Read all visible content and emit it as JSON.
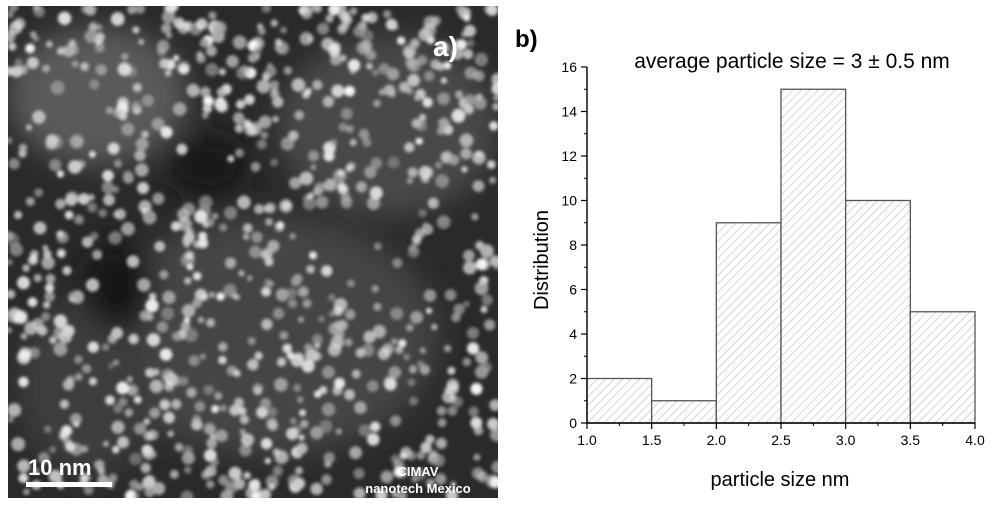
{
  "panel_a": {
    "label": "a)",
    "scale_bar_label": "10 nm",
    "watermark_line1": "CIMAV",
    "watermark_line2": "nanotech Mexico"
  },
  "panel_b": {
    "label": "b)"
  },
  "chart_data": {
    "type": "bar",
    "title": "average particle size = 3 ± 0.5 nm",
    "xlabel": "particle size nm",
    "ylabel": "Distribution",
    "xlim": [
      1.0,
      4.0
    ],
    "ylim": [
      0,
      16
    ],
    "xticks": [
      "1.0",
      "1.5",
      "2.0",
      "2.5",
      "3.0",
      "3.5",
      "4.0"
    ],
    "yticks": [
      "0",
      "2",
      "4",
      "6",
      "8",
      "10",
      "12",
      "14",
      "16"
    ],
    "bins": [
      {
        "start": 1.0,
        "end": 1.5,
        "value": 2
      },
      {
        "start": 1.5,
        "end": 2.0,
        "value": 1
      },
      {
        "start": 2.0,
        "end": 2.5,
        "value": 9
      },
      {
        "start": 2.5,
        "end": 3.0,
        "value": 15
      },
      {
        "start": 3.0,
        "end": 3.5,
        "value": 10
      },
      {
        "start": 3.5,
        "end": 4.0,
        "value": 5
      }
    ],
    "bar_fill": "hatched",
    "grid": false,
    "legend": "none"
  }
}
